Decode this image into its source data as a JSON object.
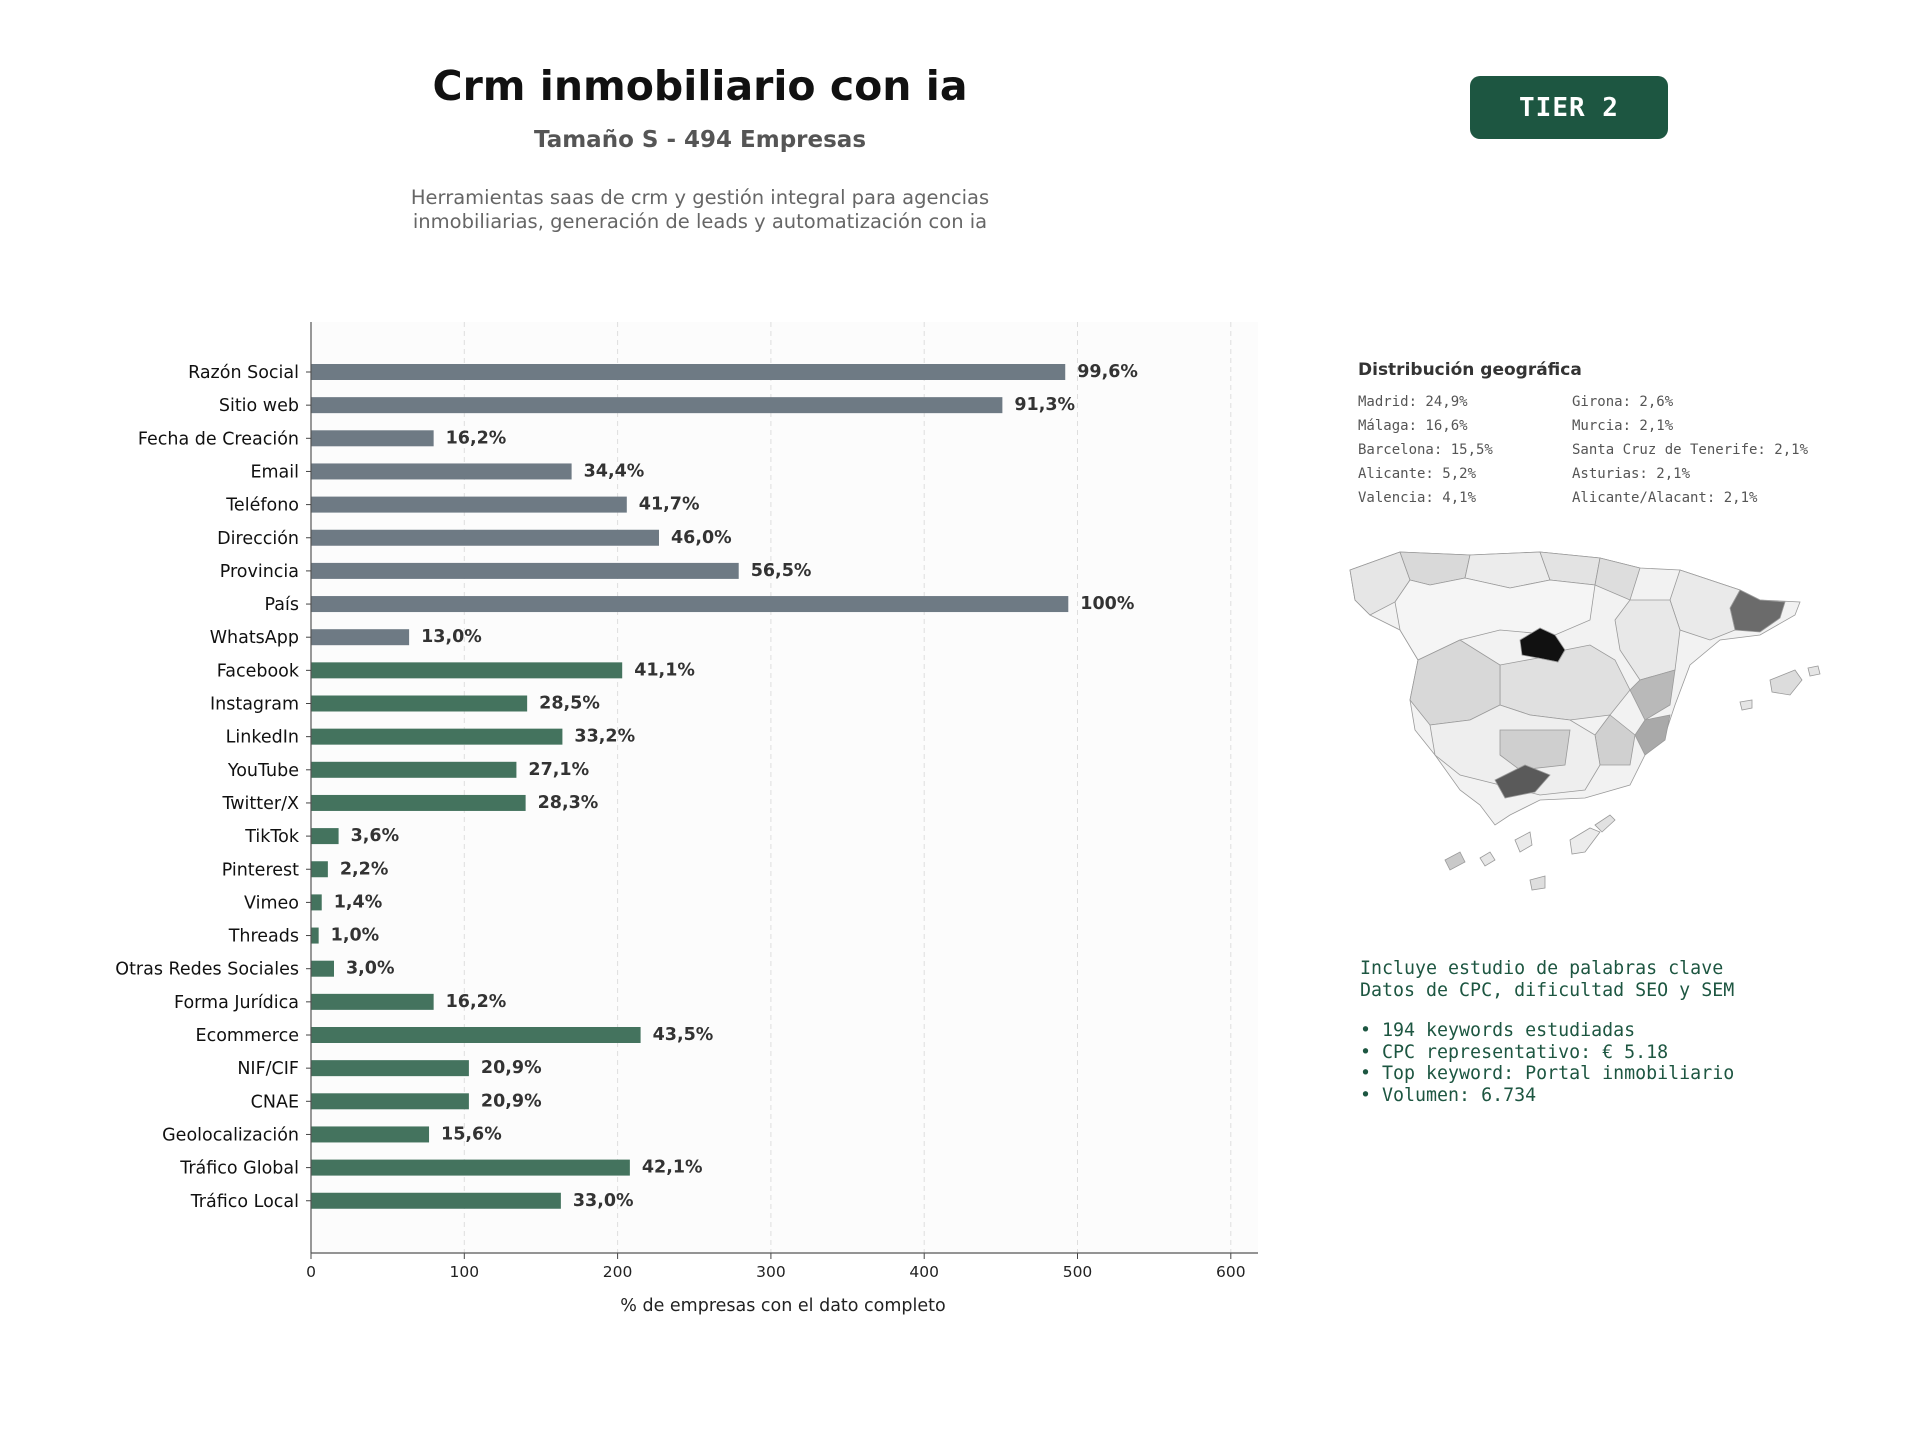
{
  "header": {
    "title": "Crm inmobiliario con ia",
    "subtitle": "Tamaño S - 494 Empresas",
    "description_line1": "Herramientas saas de crm y gestión integral para agencias",
    "description_line2": "inmobiliarias, generación de leads y automatización con ia",
    "tier_badge": "TIER 2"
  },
  "chart_data": {
    "type": "bar",
    "orientation": "horizontal",
    "xlabel": "% de empresas con el dato completo",
    "xlim": [
      0,
      620
    ],
    "xticks": [
      0,
      100,
      200,
      300,
      400,
      500,
      600
    ],
    "grid": "vertical dashed",
    "colors": {
      "base_fields": "#6e7a84",
      "extended_fields": "#44735e"
    },
    "categories": [
      "Razón Social",
      "Sitio web",
      "Fecha de Creación",
      "Email",
      "Teléfono",
      "Dirección",
      "Provincia",
      "País",
      "WhatsApp",
      "Facebook",
      "Instagram",
      "LinkedIn",
      "YouTube",
      "Twitter/X",
      "TikTok",
      "Pinterest",
      "Vimeo",
      "Threads",
      "Otras Redes Sociales",
      "Forma Jurídica",
      "Ecommerce",
      "NIF/CIF",
      "CNAE",
      "Geolocalización",
      "Tráfico Global",
      "Tráfico Local"
    ],
    "values": [
      492,
      451,
      80,
      170,
      206,
      227,
      279,
      494,
      64,
      203,
      141,
      164,
      134,
      140,
      18,
      11,
      7,
      5,
      15,
      80,
      215,
      103,
      103,
      77,
      208,
      163
    ],
    "labels": [
      "99,6%",
      "91,3%",
      "16,2%",
      "34,4%",
      "41,7%",
      "46,0%",
      "56,5%",
      "100%",
      "13,0%",
      "41,1%",
      "28,5%",
      "33,2%",
      "27,1%",
      "28,3%",
      "3,6%",
      "2,2%",
      "1,4%",
      "1,0%",
      "3,0%",
      "16,2%",
      "43,5%",
      "20,9%",
      "20,9%",
      "15,6%",
      "42,1%",
      "33,0%"
    ],
    "groups": [
      "base",
      "base",
      "base",
      "base",
      "base",
      "base",
      "base",
      "base",
      "base",
      "extended",
      "extended",
      "extended",
      "extended",
      "extended",
      "extended",
      "extended",
      "extended",
      "extended",
      "extended",
      "extended",
      "extended",
      "extended",
      "extended",
      "extended",
      "extended",
      "extended"
    ]
  },
  "geo": {
    "title": "Distribución geográfica",
    "items": [
      "Madrid: 24,9%",
      "Girona: 2,6%",
      "Málaga: 16,6%",
      "Murcia: 2,1%",
      "Barcelona: 15,5%",
      "Santa Cruz de Tenerife: 2,1%",
      "Alicante: 5,2%",
      "Asturias: 2,1%",
      "Valencia: 4,1%",
      "Alicante/Alacant: 2,1%"
    ]
  },
  "seo": {
    "line1": "Incluye estudio de palabras clave",
    "line2": "Datos de CPC, dificultad SEO y SEM",
    "bullets": [
      "• 194 keywords estudiadas",
      "• CPC representativo: € 5.18",
      "• Top keyword: Portal inmobiliario",
      "• Volumen: 6.734"
    ]
  }
}
